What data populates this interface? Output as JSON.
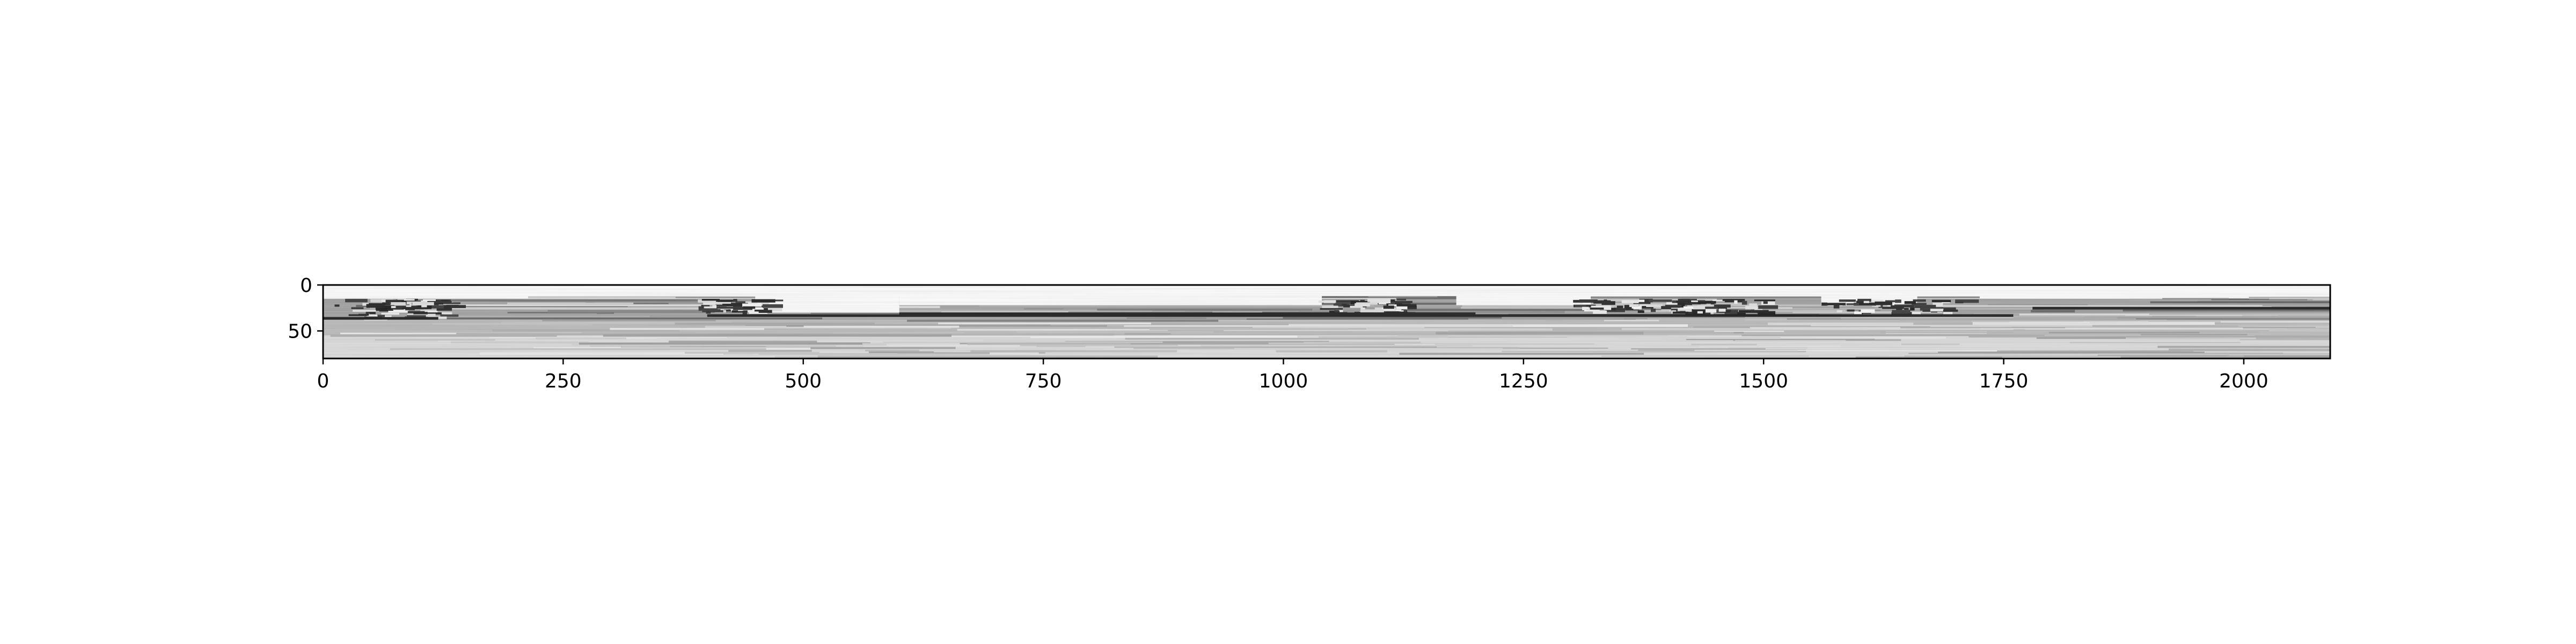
{
  "chart_data": {
    "type": "heatmap",
    "title": "",
    "xlabel": "",
    "ylabel": "",
    "colormap": "grayscale",
    "xlim": [
      0,
      2090
    ],
    "ylim": [
      80,
      0
    ],
    "x_ticks": [
      0,
      250,
      500,
      750,
      1000,
      1250,
      1500,
      1750,
      2000
    ],
    "x_tick_labels": [
      "0",
      "250",
      "500",
      "750",
      "1000",
      "1250",
      "1500",
      "1750",
      "2000"
    ],
    "y_ticks": [
      0,
      50
    ],
    "y_tick_labels": [
      "0",
      "50"
    ],
    "grid": false,
    "legend": "none",
    "bands": [
      {
        "y_range": [
          0,
          15
        ],
        "level": 1.0
      },
      {
        "y_range": [
          15,
          38
        ],
        "level": 0.62
      },
      {
        "y_range": [
          38,
          55
        ],
        "level": 0.72
      },
      {
        "y_range": [
          55,
          80
        ],
        "level": 0.86
      }
    ],
    "white_regions": [
      {
        "x_range": [
          450,
          600
        ],
        "y_range": [
          12,
          30
        ]
      },
      {
        "x_range": [
          600,
          1040
        ],
        "y_range": [
          12,
          22
        ]
      },
      {
        "x_range": [
          1180,
          1320
        ],
        "y_range": [
          12,
          22
        ]
      },
      {
        "x_range": [
          1560,
          1660
        ],
        "y_range": [
          12,
          22
        ]
      }
    ],
    "dark_regions": [
      {
        "x_range": [
          10,
          130
        ],
        "y_range": [
          15,
          35
        ]
      },
      {
        "x_range": [
          60,
          110
        ],
        "y_range": [
          15,
          24
        ]
      },
      {
        "x_range": [
          390,
          460
        ],
        "y_range": [
          15,
          28
        ]
      },
      {
        "x_range": [
          1030,
          1120
        ],
        "y_range": [
          15,
          30
        ]
      },
      {
        "x_range": [
          1300,
          1420
        ],
        "y_range": [
          15,
          28
        ]
      },
      {
        "x_range": [
          1400,
          1500
        ],
        "y_range": [
          15,
          30
        ]
      },
      {
        "x_range": [
          1560,
          1700
        ],
        "y_range": [
          15,
          30
        ]
      }
    ],
    "dark_lines": [
      {
        "x_range": [
          0,
          120
        ],
        "y": 36
      },
      {
        "x_range": [
          400,
          1760
        ],
        "y": 33
      },
      {
        "x_range": [
          600,
          1200
        ],
        "y": 31
      },
      {
        "x_range": [
          1780,
          2090
        ],
        "y": 25
      }
    ]
  },
  "colors": {
    "axis": "#000000",
    "background": "#ffffff"
  }
}
